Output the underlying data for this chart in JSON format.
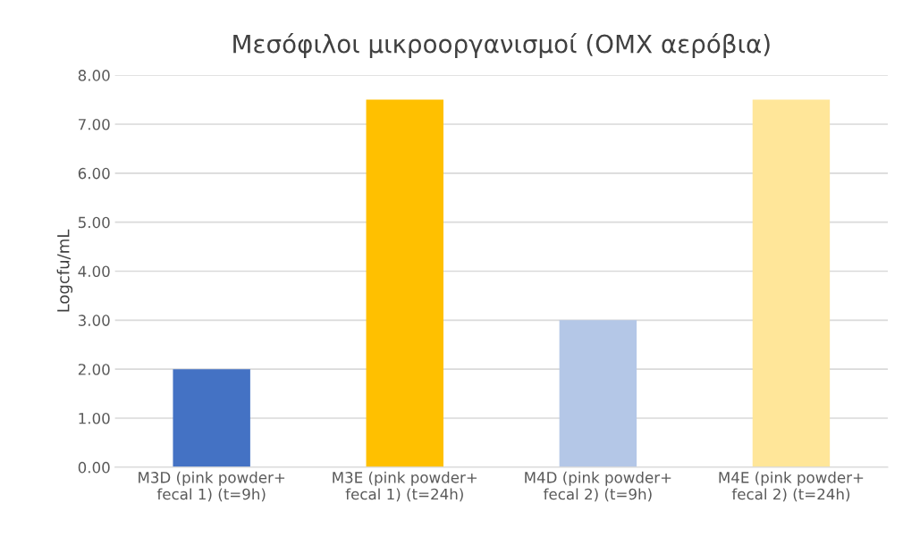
{
  "chart_data": {
    "type": "bar",
    "title": "Μεσόφιλοι μικροοργανισμοί (ΟΜΧ αερόβια)",
    "ylabel": "Logcfu/mL",
    "categories": [
      "M3D (pink powder+\nfecal 1) (t=9h)",
      "M3E (pink powder+\nfecal 1) (t=24h)",
      "M4D (pink powder+\nfecal 2) (t=9h)",
      "M4E (pink powder+\nfecal 2) (t=24h)"
    ],
    "values": [
      2.0,
      7.5,
      3.0,
      7.5
    ],
    "colors": [
      "#4472c4",
      "#ffc000",
      "#b4c7e7",
      "#ffe699"
    ],
    "ylim": [
      0,
      8
    ],
    "yticks": [
      {
        "value": 0,
        "label": "0.00"
      },
      {
        "value": 1,
        "label": "1.00"
      },
      {
        "value": 2,
        "label": "2.00"
      },
      {
        "value": 3,
        "label": "3.00"
      },
      {
        "value": 4,
        "label": "4.00"
      },
      {
        "value": 5,
        "label": "5.00"
      },
      {
        "value": 6,
        "label": "6.00"
      },
      {
        "value": 7,
        "label": "7.00"
      },
      {
        "value": 8,
        "label": "8.00"
      }
    ],
    "grid": "y"
  }
}
